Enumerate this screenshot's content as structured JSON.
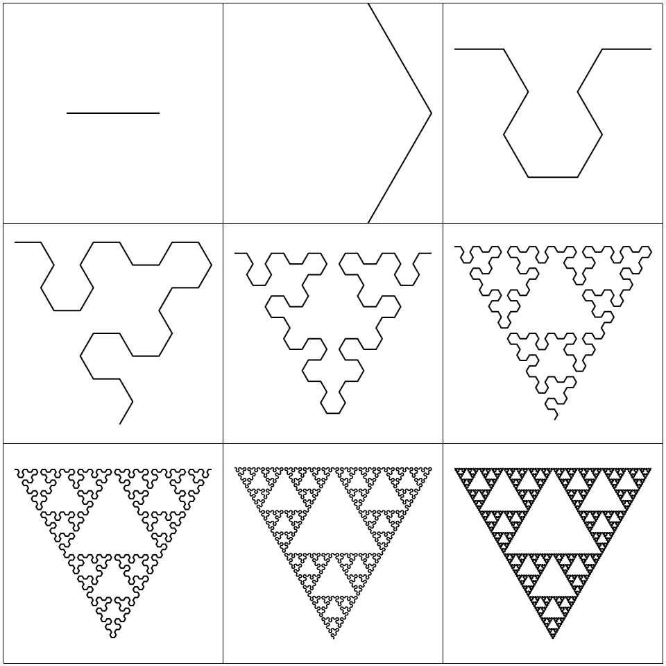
{
  "figure": {
    "panel_count": 9,
    "line_color": "#000000",
    "background_color": "#ffffff",
    "panels": [
      {
        "order": 0
      },
      {
        "order": 1
      },
      {
        "order": 2
      },
      {
        "order": 3
      },
      {
        "order": 4
      },
      {
        "order": 5
      },
      {
        "order": 6
      },
      {
        "order": 7
      },
      {
        "order": 8
      }
    ]
  }
}
